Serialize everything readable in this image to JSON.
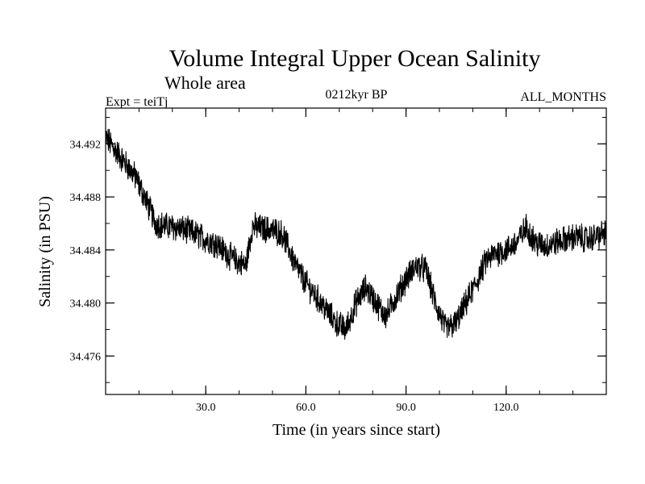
{
  "chart_data": {
    "type": "line",
    "title": "Volume Integral Upper Ocean Salinity",
    "subtitle": "Whole area",
    "annotations": {
      "expt": "Expt = teiTj",
      "period": "0212kyr BP",
      "months": "ALL_MONTHS"
    },
    "xlabel": "Time (in years since start)",
    "ylabel": "Salinity (in PSU)",
    "xlim": [
      0,
      150
    ],
    "ylim": [
      34.4731,
      34.4947
    ],
    "x_ticks_major": [
      30,
      60,
      90,
      120
    ],
    "x_tick_labels": [
      "30.0",
      "60.0",
      "90.0",
      "120.0"
    ],
    "x_tick_minor_step": 10,
    "y_ticks_major": [
      34.476,
      34.48,
      34.484,
      34.488,
      34.492
    ],
    "y_tick_labels": [
      "34.476",
      "34.480",
      "34.484",
      "34.488",
      "34.492"
    ],
    "y_tick_minor_step": 0.002,
    "grid": false,
    "series": [
      {
        "name": "salinity",
        "color": "#000000",
        "trend_x": [
          0,
          3,
          6,
          9,
          12,
          15,
          18,
          21,
          24,
          27,
          30,
          33,
          36,
          39,
          42,
          44,
          47,
          50,
          53,
          55,
          57,
          60,
          63,
          66,
          69,
          72,
          75,
          78,
          81,
          84,
          87,
          90,
          93,
          96,
          99,
          102,
          105,
          108,
          111,
          114,
          117,
          120,
          123,
          126,
          129,
          132,
          135,
          138,
          141,
          144,
          147,
          150
        ],
        "trend_y": [
          34.4925,
          34.4915,
          34.4905,
          34.4895,
          34.4878,
          34.486,
          34.4858,
          34.4857,
          34.4855,
          34.4852,
          34.4848,
          34.4845,
          34.4838,
          34.4832,
          34.4828,
          34.4858,
          34.4856,
          34.4855,
          34.4852,
          34.484,
          34.4828,
          34.4815,
          34.4805,
          34.4795,
          34.4785,
          34.478,
          34.48,
          34.4812,
          34.48,
          34.479,
          34.4805,
          34.4818,
          34.4828,
          34.4825,
          34.4798,
          34.478,
          34.4785,
          34.48,
          34.4815,
          34.4832,
          34.4838,
          34.484,
          34.4845,
          34.4857,
          34.4845,
          34.4843,
          34.4846,
          34.4848,
          34.485,
          34.4848,
          34.485,
          34.4853
        ],
        "noise_amplitude_psu": 0.0009,
        "sample_step_years": 0.08333
      }
    ]
  }
}
